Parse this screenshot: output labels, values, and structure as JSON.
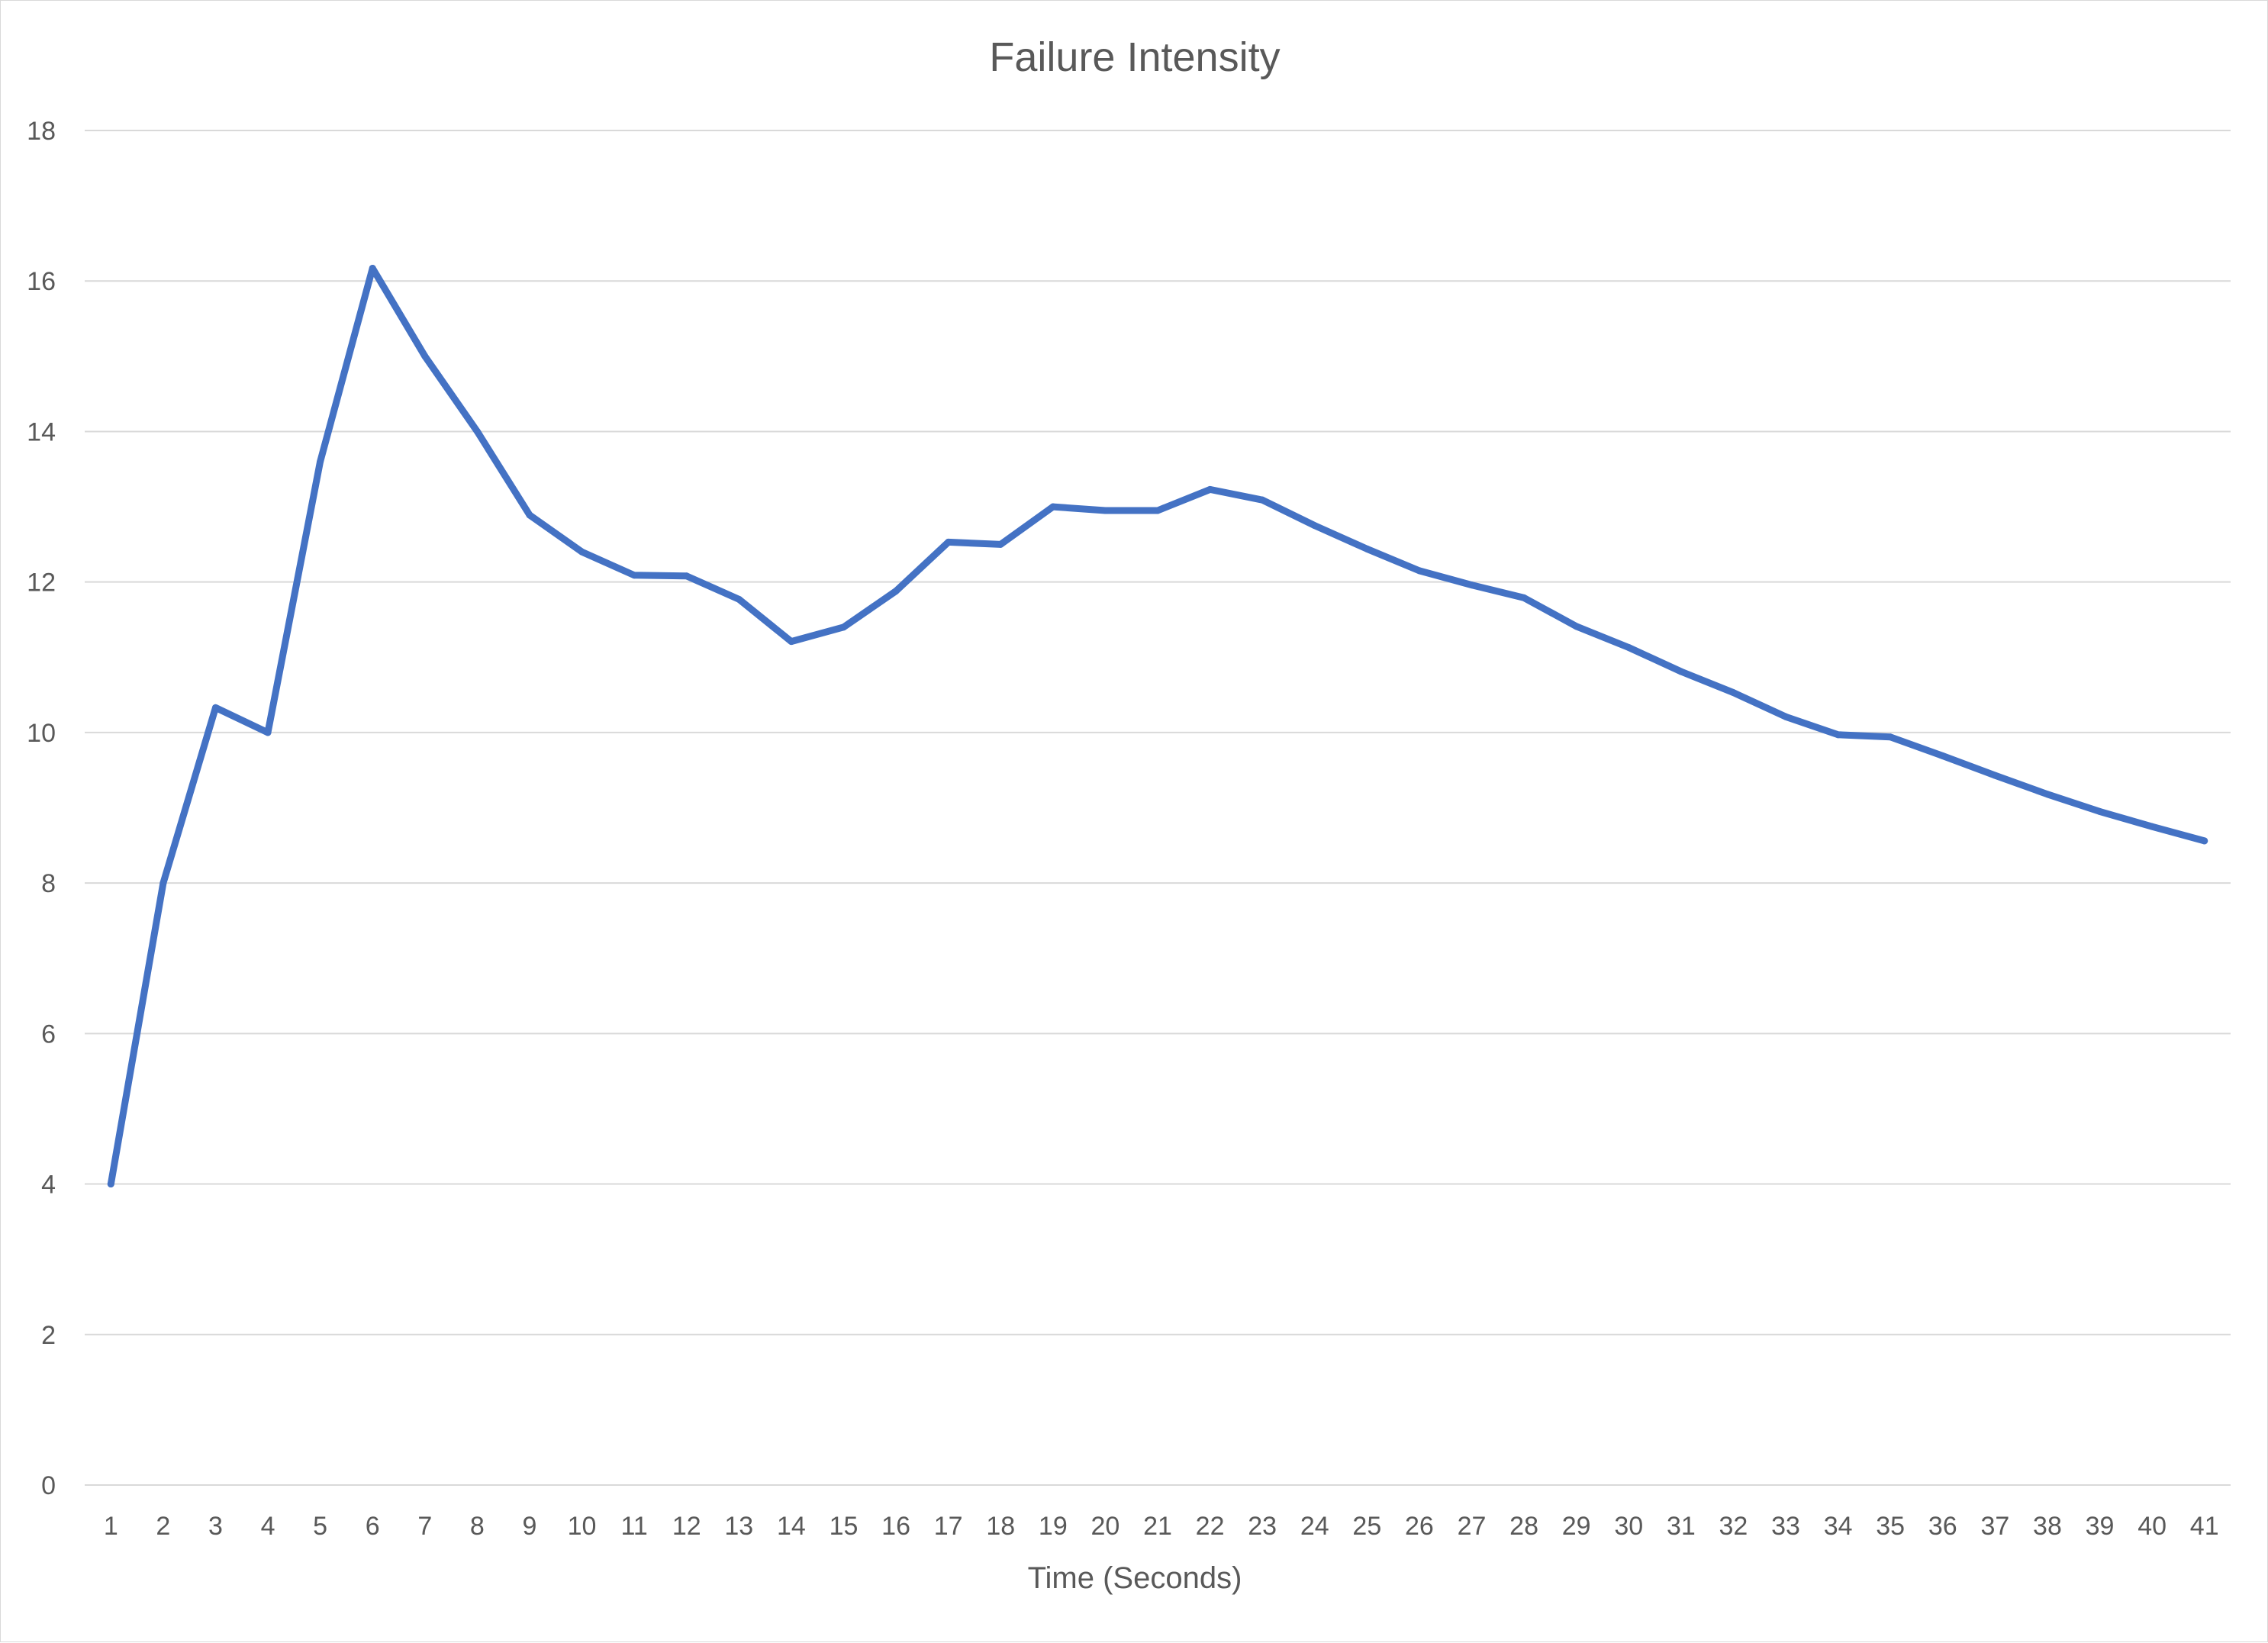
{
  "chart_data": {
    "type": "line",
    "title": "Failure Intensity",
    "xlabel": "Time (Seconds)",
    "ylabel": "",
    "ylim": [
      0,
      18
    ],
    "yticks": [
      "0",
      "2",
      "4",
      "6",
      "8",
      "10",
      "12",
      "14",
      "16",
      "18"
    ],
    "grid": true,
    "legend": "none",
    "line_color": "#4472C4",
    "categories": [
      "1",
      "2",
      "3",
      "4",
      "5",
      "6",
      "7",
      "8",
      "9",
      "10",
      "11",
      "12",
      "13",
      "14",
      "15",
      "16",
      "17",
      "18",
      "19",
      "20",
      "21",
      "22",
      "23",
      "24",
      "25",
      "26",
      "27",
      "28",
      "29",
      "30",
      "31",
      "32",
      "33",
      "34",
      "35",
      "36",
      "37",
      "38",
      "39",
      "40",
      "41"
    ],
    "series": [
      {
        "values": [
          4,
          8,
          10.33,
          10,
          13.6,
          16.17,
          15,
          14,
          12.89,
          12.4,
          12.09,
          12.08,
          11.77,
          11.21,
          11.4,
          11.88,
          12.53,
          12.5,
          13,
          12.95,
          12.95,
          13.23,
          13.09,
          12.75,
          12.44,
          12.15,
          11.96,
          11.79,
          11.41,
          11.13,
          10.81,
          10.53,
          10.21,
          9.97,
          9.94,
          9.69,
          9.43,
          9.18,
          8.95,
          8.75,
          8.56
        ]
      }
    ]
  }
}
